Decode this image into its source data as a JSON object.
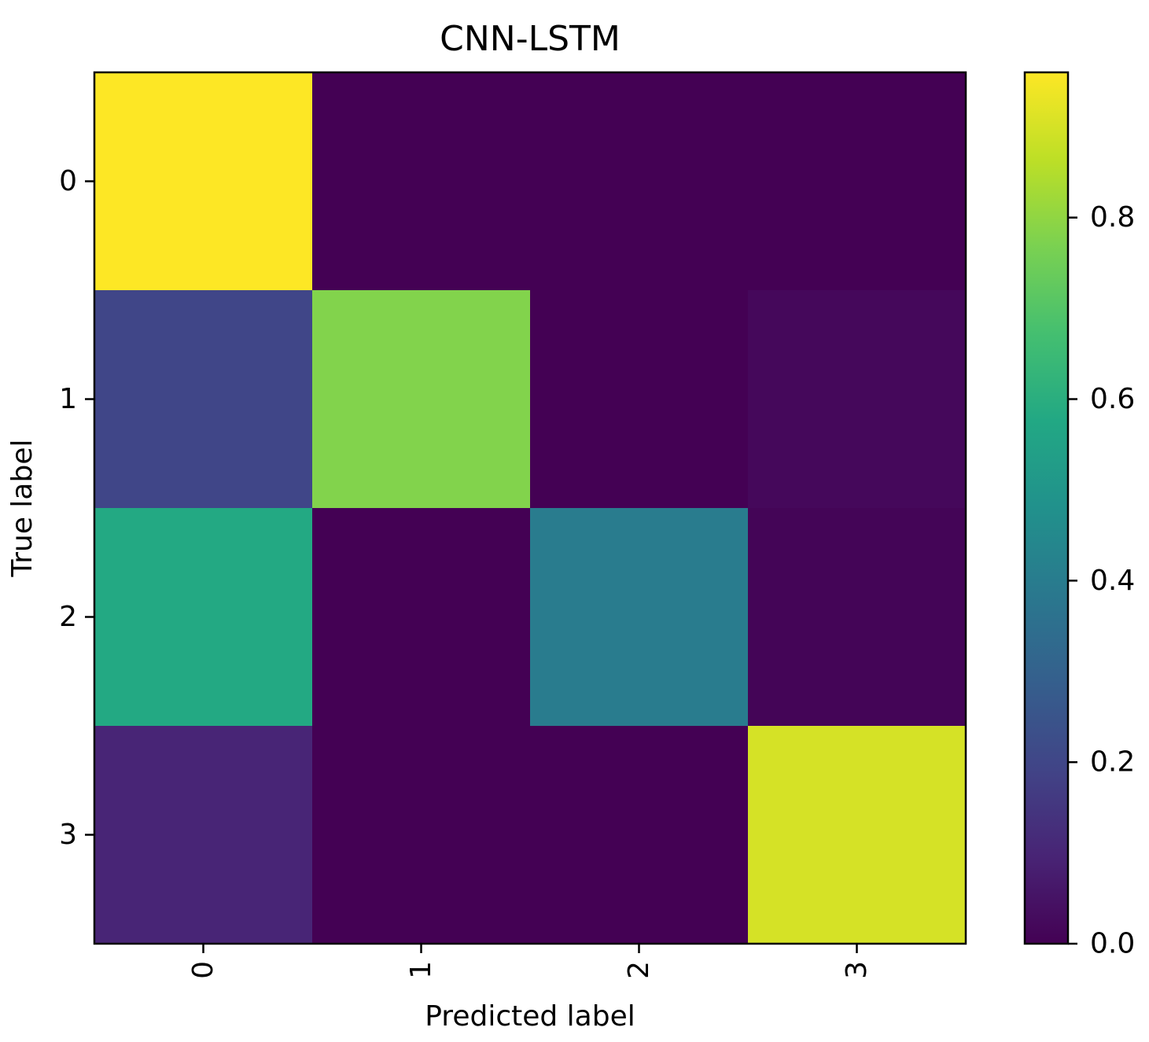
{
  "chart_data": {
    "type": "heatmap",
    "title": "CNN-LSTM",
    "xlabel": "Predicted label",
    "ylabel": "True label",
    "x_categories": [
      "0",
      "1",
      "2",
      "3"
    ],
    "y_categories": [
      "0",
      "1",
      "2",
      "3"
    ],
    "matrix": [
      [
        0.96,
        0.0,
        0.0,
        0.0
      ],
      [
        0.2,
        0.78,
        0.0,
        0.02
      ],
      [
        0.58,
        0.0,
        0.4,
        0.01
      ],
      [
        0.1,
        0.0,
        0.0,
        0.9
      ]
    ],
    "colormap": "viridis",
    "colorbar": {
      "vmin": 0.0,
      "vmax": 0.96,
      "ticks": [
        0.0,
        0.2,
        0.4,
        0.6,
        0.8
      ],
      "tick_labels": [
        "0.0",
        "0.2",
        "0.4",
        "0.6",
        "0.8"
      ]
    },
    "grid": false
  }
}
